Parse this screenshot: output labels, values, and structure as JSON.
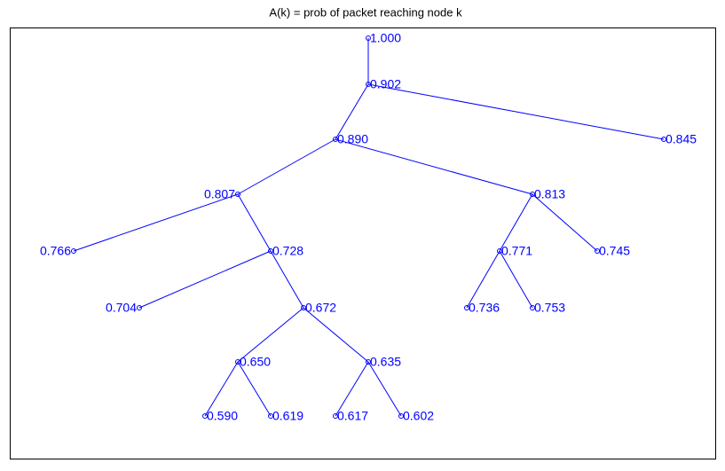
{
  "title": "A(k) = prob of packet reaching node k",
  "nodes": [
    {
      "label": "1.000"
    },
    {
      "label": "0.902"
    },
    {
      "label": "0.845"
    },
    {
      "label": "0.890"
    },
    {
      "label": "0.807"
    },
    {
      "label": "0.813"
    },
    {
      "label": "0.766"
    },
    {
      "label": "0.728"
    },
    {
      "label": "0.771"
    },
    {
      "label": "0.745"
    },
    {
      "label": "0.704"
    },
    {
      "label": "0.672"
    },
    {
      "label": "0.736"
    },
    {
      "label": "0.753"
    },
    {
      "label": "0.650"
    },
    {
      "label": "0.635"
    },
    {
      "label": "0.590"
    },
    {
      "label": "0.619"
    },
    {
      "label": "0.617"
    },
    {
      "label": "0.602"
    }
  ]
}
